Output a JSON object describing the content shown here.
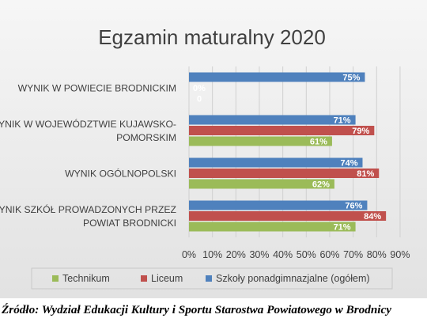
{
  "chart_data": {
    "type": "bar",
    "orientation": "horizontal",
    "title": "Egzamin maturalny 2020",
    "categories": [
      "WYNIK W POWIECIE BRODNICKIM",
      "WYNIK W WOJEWÓDZTWIE KUJAWSKO-POMORSKIM",
      "WYNIK OGÓLNOPOLSKI",
      "WYNIK SZKÓŁ PROWADZONYCH PRZEZ POWIAT BRODNICKI"
    ],
    "category_lines": [
      [
        "WYNIK W POWIECIE BRODNICKIM"
      ],
      [
        "WYNIK W WOJEWÓDZTWIE KUJAWSKO-",
        "POMORSKIM"
      ],
      [
        "WYNIK OGÓLNOPOLSKI"
      ],
      [
        "WYNIK SZKÓŁ PROWADZONYCH PRZEZ",
        "POWIAT BRODNICKI"
      ]
    ],
    "series": [
      {
        "name": "Technikum",
        "color": "#9bbb59",
        "values": [
          0,
          61,
          62,
          71
        ],
        "labels": [
          "0",
          "61%",
          "62%",
          "71%"
        ]
      },
      {
        "name": "Liceum",
        "color": "#c0504d",
        "values": [
          0,
          79,
          81,
          84
        ],
        "labels": [
          "0%",
          "79%",
          "81%",
          "84%"
        ]
      },
      {
        "name": "Szkoły ponadgimnazjalne (ogółem)",
        "color": "#4f81bd",
        "values": [
          75,
          71,
          74,
          76
        ],
        "labels": [
          "75%",
          "71%",
          "74%",
          "76%"
        ]
      }
    ],
    "xlim": [
      0,
      90
    ],
    "x_ticks": [
      "0%",
      "10%",
      "20%",
      "30%",
      "40%",
      "50%",
      "60%",
      "70%",
      "80%",
      "90%"
    ],
    "grid": true,
    "legend": "bottom"
  },
  "source": "Źródło: Wydział Edukacji Kultury i Sportu Starostwa Powiatowego w Brodnicy"
}
